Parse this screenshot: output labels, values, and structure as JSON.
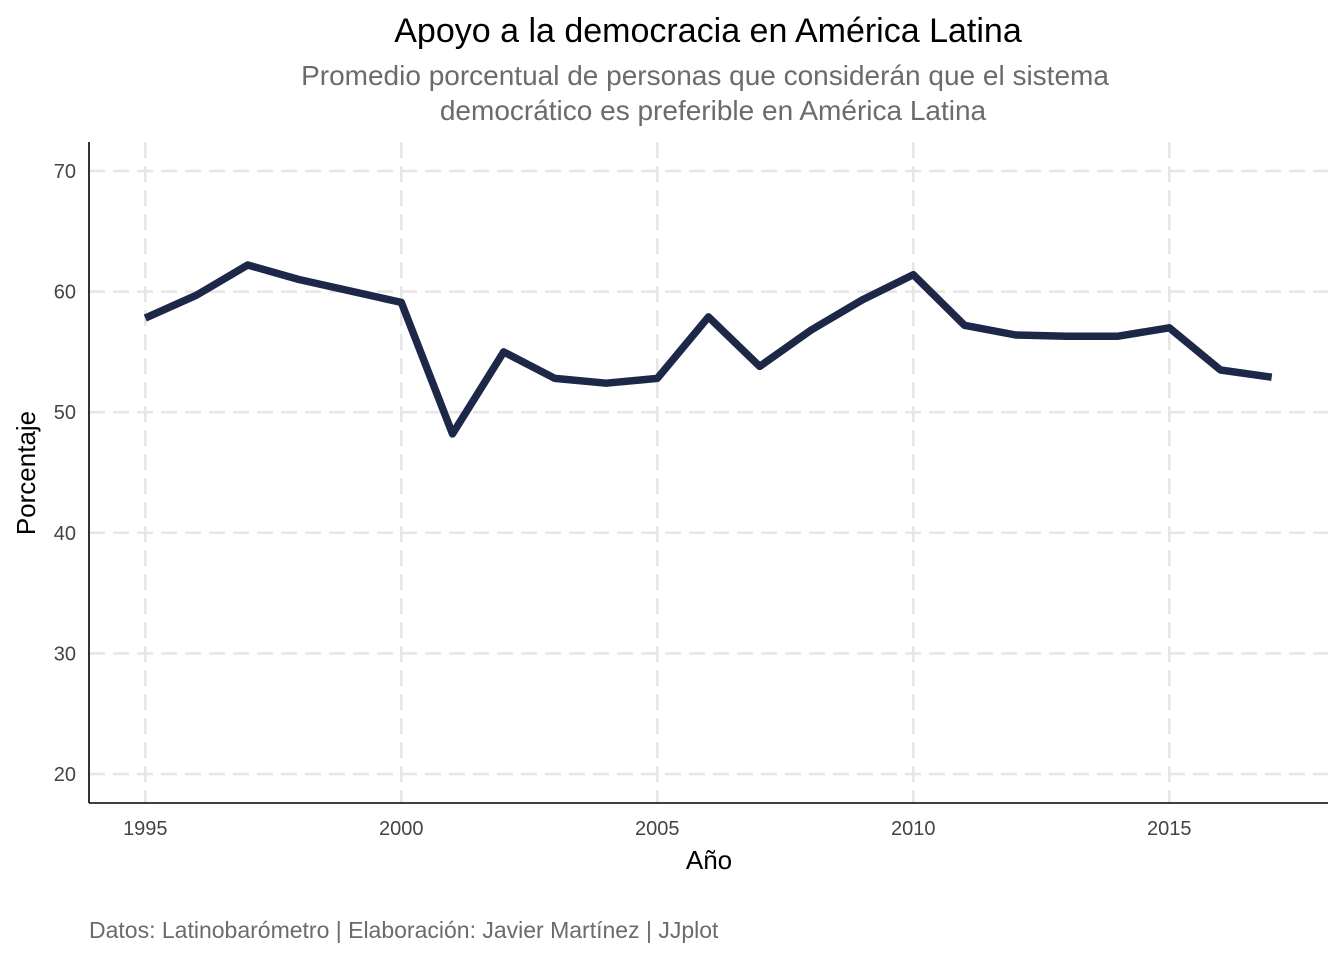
{
  "chart_data": {
    "type": "line",
    "title": "Apoyo a la democracia en América Latina",
    "subtitle_lines": [
      "Promedio porcentual de personas que considerán que el sistema",
      "democrático es preferible en América Latina"
    ],
    "xlabel": "Año",
    "ylabel": "Porcentaje",
    "caption": "Datos: Latinobarómetro | Elaboración: Javier Martínez | JJplot",
    "xlim": [
      1993.9,
      2018.1
    ],
    "ylim": [
      17.6,
      72.4
    ],
    "x_ticks": [
      1995,
      2000,
      2005,
      2010,
      2015
    ],
    "y_ticks": [
      20,
      30,
      40,
      50,
      60,
      70
    ],
    "grid": true,
    "line_color": "#1d2849",
    "x": [
      1995,
      1996,
      1997,
      1998,
      2000,
      2001,
      2002,
      2003,
      2004,
      2005,
      2006,
      2007,
      2008,
      2009,
      2010,
      2011,
      2012,
      2013,
      2014,
      2015,
      2016,
      2017
    ],
    "values": [
      57.8,
      59.7,
      62.2,
      61.0,
      59.1,
      48.2,
      55.0,
      52.8,
      52.4,
      52.8,
      57.9,
      53.8,
      56.8,
      59.3,
      61.4,
      57.2,
      56.4,
      56.3,
      56.3,
      57.0,
      53.5,
      52.9
    ]
  }
}
